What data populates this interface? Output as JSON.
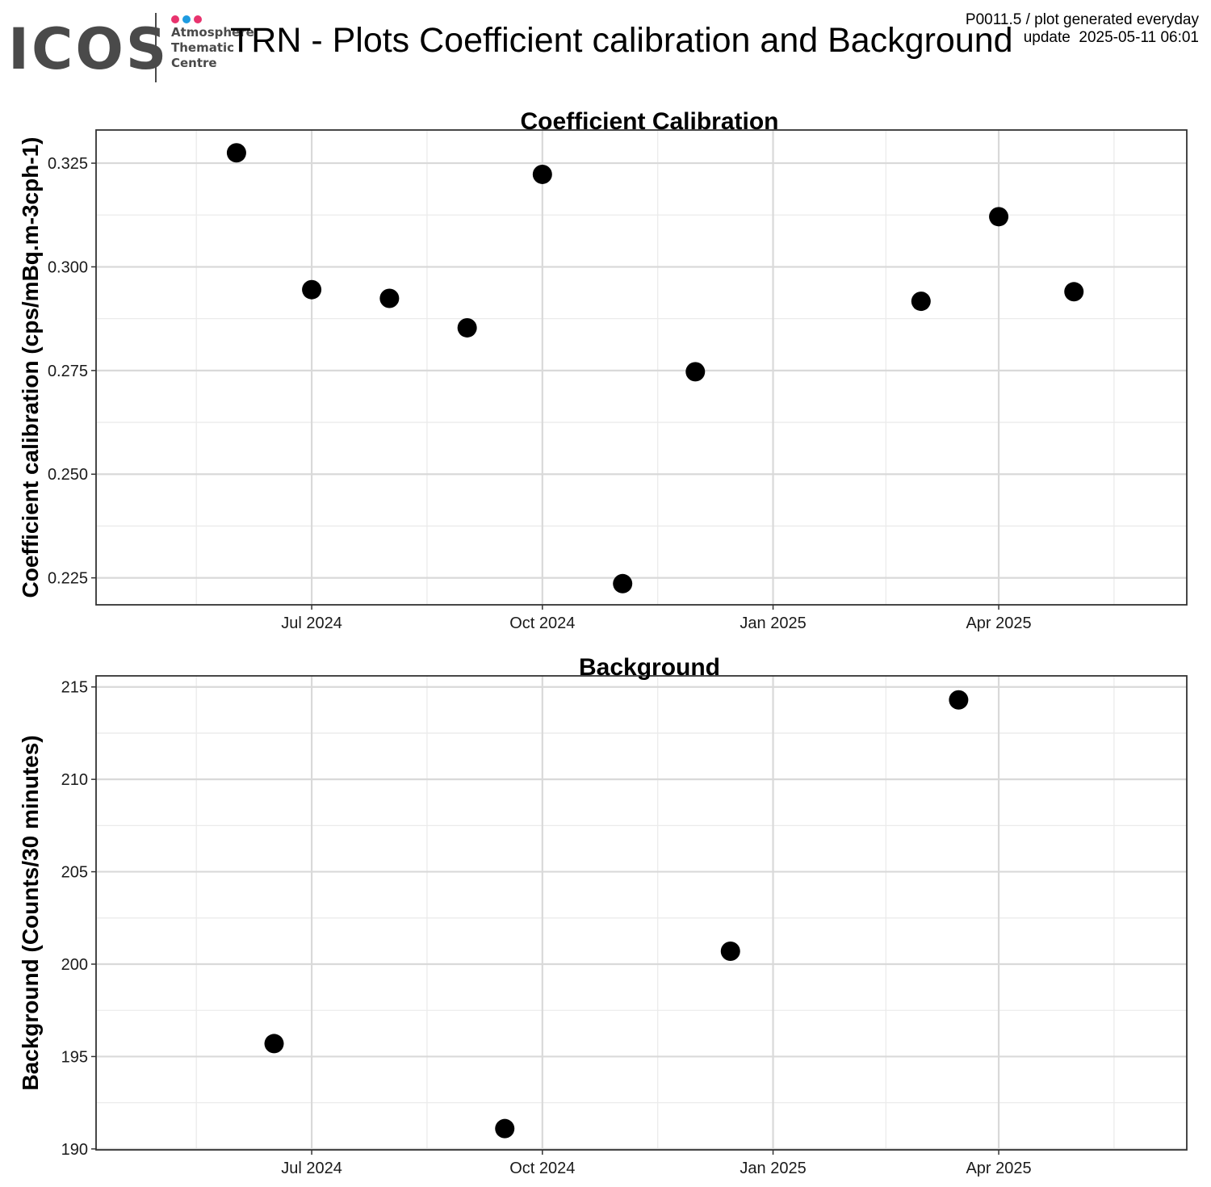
{
  "header": {
    "logo_text": "ICOS",
    "logo_lines": [
      "Atmosphere",
      "Thematic",
      "Centre"
    ],
    "logo_dot_colors": [
      "#e8336e",
      "#1e9be0",
      "#e8336e"
    ],
    "title": "TRN - Plots Coefficient calibration and Background",
    "meta_line1": "P0011.5 / plot generated everyday",
    "meta_line2": "update  2025-05-11 06:01"
  },
  "chart_data": [
    {
      "type": "scatter",
      "title": "Coefficient Calibration",
      "xlabel": "",
      "ylabel": "Coefficient calibration (cps/mBq.m-3cph-1)",
      "xlim": [
        "2024-04-06",
        "2025-06-15"
      ],
      "ylim": [
        0.2185,
        0.333
      ],
      "yticks": [
        "0.225",
        "0.250",
        "0.275",
        "0.300",
        "0.325"
      ],
      "xticks": [
        {
          "label": "Jul 2024",
          "date": "2024-07-01"
        },
        {
          "label": "Oct 2024",
          "date": "2024-10-01"
        },
        {
          "label": "Jan 2025",
          "date": "2025-01-01"
        },
        {
          "label": "Apr 2025",
          "date": "2025-04-01"
        }
      ],
      "grid": true,
      "points": [
        {
          "x": "2024-06-01",
          "y": 0.3275
        },
        {
          "x": "2024-07-01",
          "y": 0.2945
        },
        {
          "x": "2024-08-01",
          "y": 0.2924
        },
        {
          "x": "2024-09-01",
          "y": 0.2853
        },
        {
          "x": "2024-10-01",
          "y": 0.3223
        },
        {
          "x": "2024-11-02",
          "y": 0.2236
        },
        {
          "x": "2024-12-01",
          "y": 0.2747
        },
        {
          "x": "2025-03-01",
          "y": 0.2917
        },
        {
          "x": "2025-04-01",
          "y": 0.3121
        },
        {
          "x": "2025-05-01",
          "y": 0.294
        }
      ]
    },
    {
      "type": "scatter",
      "title": "Background",
      "xlabel": "",
      "ylabel": "Background (Counts/30 minutes)",
      "xlim": [
        "2024-04-06",
        "2025-06-15"
      ],
      "ylim": [
        189.95,
        215.6
      ],
      "yticks": [
        "190",
        "195",
        "200",
        "205",
        "210",
        "215"
      ],
      "xticks": [
        {
          "label": "Jul 2024",
          "date": "2024-07-01"
        },
        {
          "label": "Oct 2024",
          "date": "2024-10-01"
        },
        {
          "label": "Jan 2025",
          "date": "2025-01-01"
        },
        {
          "label": "Apr 2025",
          "date": "2025-04-01"
        }
      ],
      "grid": true,
      "points": [
        {
          "x": "2024-06-16",
          "y": 195.7
        },
        {
          "x": "2024-09-16",
          "y": 191.1
        },
        {
          "x": "2024-12-15",
          "y": 200.7
        },
        {
          "x": "2025-03-16",
          "y": 214.3
        }
      ]
    }
  ]
}
